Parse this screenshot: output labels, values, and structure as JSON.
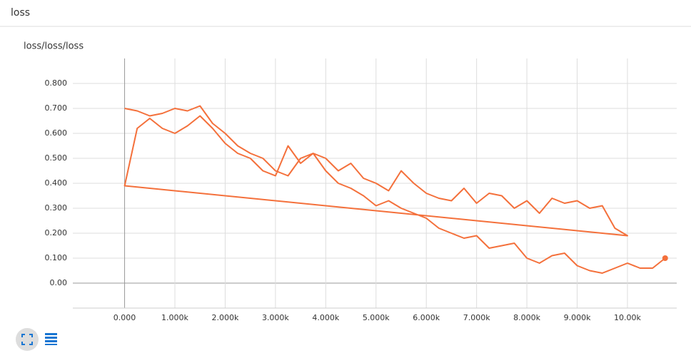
{
  "header": {
    "title": "loss"
  },
  "chart_data": {
    "type": "line",
    "title": "loss/loss/loss",
    "x": [
      0,
      250,
      500,
      750,
      1000,
      1250,
      1500,
      1750,
      2000,
      2250,
      2500,
      2750,
      3000,
      3250,
      3500,
      3750,
      4000,
      4250,
      4500,
      4750,
      5000,
      5250,
      5500,
      5750,
      6000,
      6250,
      6500,
      6750,
      7000,
      7250,
      7500,
      7750,
      8000,
      8250,
      8500,
      8750,
      9000,
      9250,
      9500,
      9750,
      10000,
      0,
      250,
      500,
      750,
      1000,
      1250,
      1500,
      1750,
      2000,
      2250,
      2500,
      2750,
      3000,
      3250,
      3500,
      3750,
      4000,
      4250,
      4500,
      4750,
      5000,
      5250,
      5500,
      5750,
      6000,
      6250,
      6500,
      6750,
      7000,
      7250,
      7500,
      7750,
      8000,
      8250,
      8500,
      8750,
      9000,
      9250,
      9500,
      9750,
      10000,
      10250,
      10500,
      10750
    ],
    "series": [
      {
        "color": "#f4703b",
        "values": [
          0.7,
          0.69,
          0.67,
          0.68,
          0.7,
          0.69,
          0.71,
          0.64,
          0.6,
          0.55,
          0.52,
          0.5,
          0.45,
          0.43,
          0.5,
          0.52,
          0.5,
          0.45,
          0.48,
          0.42,
          0.4,
          0.37,
          0.45,
          0.4,
          0.36,
          0.34,
          0.33,
          0.38,
          0.32,
          0.36,
          0.35,
          0.3,
          0.33,
          0.28,
          0.34,
          0.32,
          0.33,
          0.3,
          0.31,
          0.22,
          0.19,
          0.39,
          0.62,
          0.66,
          0.62,
          0.6,
          0.63,
          0.67,
          0.62,
          0.56,
          0.52,
          0.5,
          0.45,
          0.43,
          0.55,
          0.48,
          0.52,
          0.45,
          0.4,
          0.38,
          0.35,
          0.31,
          0.33,
          0.3,
          0.28,
          0.26,
          0.22,
          0.2,
          0.18,
          0.19,
          0.14,
          0.15,
          0.16,
          0.1,
          0.08,
          0.11,
          0.12,
          0.07,
          0.05,
          0.04,
          0.06,
          0.08,
          0.06,
          0.06,
          0.1
        ]
      }
    ],
    "xlim": [
      -1030,
      10980
    ],
    "ylim": [
      -0.1,
      0.9
    ],
    "xticks": [
      {
        "value": 0,
        "label": "0.000"
      },
      {
        "value": 1000,
        "label": "1.000k"
      },
      {
        "value": 2000,
        "label": "2.000k"
      },
      {
        "value": 3000,
        "label": "3.000k"
      },
      {
        "value": 4000,
        "label": "4.000k"
      },
      {
        "value": 5000,
        "label": "5.000k"
      },
      {
        "value": 6000,
        "label": "6.000k"
      },
      {
        "value": 7000,
        "label": "7.000k"
      },
      {
        "value": 8000,
        "label": "8.000k"
      },
      {
        "value": 9000,
        "label": "9.000k"
      },
      {
        "value": 10000,
        "label": "10.00k"
      }
    ],
    "yticks": [
      {
        "value": 0,
        "label": "0.00"
      },
      {
        "value": 0.1,
        "label": "0.100"
      },
      {
        "value": 0.2,
        "label": "0.200"
      },
      {
        "value": 0.3,
        "label": "0.300"
      },
      {
        "value": 0.4,
        "label": "0.400"
      },
      {
        "value": 0.5,
        "label": "0.500"
      },
      {
        "value": 0.6,
        "label": "0.600"
      },
      {
        "value": 0.7,
        "label": "0.700"
      },
      {
        "value": 0.8,
        "label": "0.800"
      }
    ],
    "grid": true
  }
}
